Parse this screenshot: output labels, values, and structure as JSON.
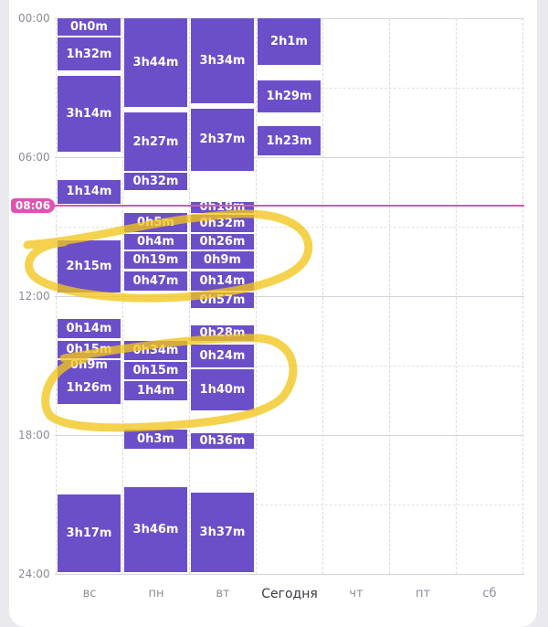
{
  "time_axis": {
    "labels": [
      "00:00",
      "06:00",
      "12:00",
      "18:00",
      "24:00"
    ]
  },
  "current_time": "08:06",
  "days": [
    {
      "label": "вс",
      "today": false,
      "blocks": [
        {
          "start": "00:00",
          "end": "00:45",
          "label": "0h0m"
        },
        {
          "start": "00:50",
          "end": "02:15",
          "label": "1h32m"
        },
        {
          "start": "02:30",
          "end": "05:45",
          "label": "3h14m"
        },
        {
          "start": "07:00",
          "end": "08:00",
          "label": "1h14m"
        },
        {
          "start": "09:35",
          "end": "11:50",
          "label": "2h15m"
        },
        {
          "start": "13:00",
          "end": "13:50",
          "label": "0h14m"
        },
        {
          "start": "13:55",
          "end": "14:40",
          "label": "0h15m"
        },
        {
          "start": "14:45",
          "end": "15:10",
          "label": "0h9m"
        },
        {
          "start": "15:15",
          "end": "16:40",
          "label": "1h26m"
        },
        {
          "start": "20:35",
          "end": "23:55",
          "label": "3h17m"
        }
      ]
    },
    {
      "label": "пн",
      "today": false,
      "blocks": [
        {
          "start": "00:00",
          "end": "03:50",
          "label": "3h44m"
        },
        {
          "start": "04:05",
          "end": "06:35",
          "label": "2h27m"
        },
        {
          "start": "06:40",
          "end": "07:25",
          "label": "0h32m"
        },
        {
          "start": "08:25",
          "end": "09:15",
          "label": "0h5m"
        },
        {
          "start": "09:20",
          "end": "10:00",
          "label": "0h4m"
        },
        {
          "start": "10:05",
          "end": "10:50",
          "label": "0h19m"
        },
        {
          "start": "10:55",
          "end": "11:45",
          "label": "0h47m"
        },
        {
          "start": "13:55",
          "end": "14:45",
          "label": "0h34m"
        },
        {
          "start": "14:50",
          "end": "15:35",
          "label": "0h15m"
        },
        {
          "start": "15:40",
          "end": "16:30",
          "label": "1h4m"
        },
        {
          "start": "17:45",
          "end": "18:35",
          "label": "0h3m"
        },
        {
          "start": "20:15",
          "end": "23:55",
          "label": "3h46m"
        }
      ]
    },
    {
      "label": "вт",
      "today": false,
      "blocks": [
        {
          "start": "00:00",
          "end": "03:40",
          "label": "3h34m"
        },
        {
          "start": "03:55",
          "end": "06:35",
          "label": "2h37m"
        },
        {
          "start": "07:55",
          "end": "08:25",
          "label": "0h18m"
        },
        {
          "start": "08:30",
          "end": "09:15",
          "label": "0h32m"
        },
        {
          "start": "09:20",
          "end": "10:00",
          "label": "0h26m"
        },
        {
          "start": "10:05",
          "end": "10:50",
          "label": "0h9m"
        },
        {
          "start": "10:55",
          "end": "11:45",
          "label": "0h14m"
        },
        {
          "start": "11:50",
          "end": "12:30",
          "label": "0h57m"
        },
        {
          "start": "13:15",
          "end": "13:55",
          "label": "0h28m"
        },
        {
          "start": "14:05",
          "end": "15:05",
          "label": "0h24m"
        },
        {
          "start": "15:10",
          "end": "16:55",
          "label": "1h40m"
        },
        {
          "start": "17:55",
          "end": "18:35",
          "label": "0h36m"
        },
        {
          "start": "20:30",
          "end": "23:55",
          "label": "3h37m"
        }
      ]
    },
    {
      "label": "Сегодня",
      "today": true,
      "blocks": [
        {
          "start": "00:00",
          "end": "02:00",
          "label": "2h1m"
        },
        {
          "start": "02:40",
          "end": "04:05",
          "label": "1h29m"
        },
        {
          "start": "04:40",
          "end": "05:55",
          "label": "1h23m"
        }
      ]
    },
    {
      "label": "чт",
      "today": false,
      "blocks": []
    },
    {
      "label": "пт",
      "today": false,
      "blocks": []
    },
    {
      "label": "сб",
      "today": false,
      "blocks": []
    }
  ],
  "colors": {
    "block": "#6b4fc8",
    "now": "#e052b0",
    "highlight": "#f2c51b"
  }
}
